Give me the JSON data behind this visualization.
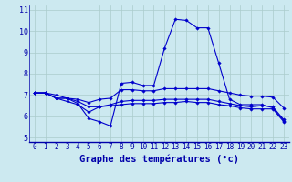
{
  "title": "Graphe des températures (°c)",
  "background_color": "#cce9f0",
  "line_color": "#0000cc",
  "x_hours": [
    0,
    1,
    2,
    3,
    4,
    5,
    6,
    7,
    8,
    9,
    10,
    11,
    12,
    13,
    14,
    15,
    16,
    17,
    18,
    19,
    20,
    21,
    22,
    23
  ],
  "series": {
    "line1": [
      7.1,
      7.1,
      7.0,
      6.85,
      6.6,
      5.9,
      5.75,
      5.55,
      7.55,
      7.6,
      7.45,
      7.45,
      9.2,
      10.55,
      10.5,
      10.15,
      10.15,
      8.5,
      6.8,
      6.55,
      6.55,
      6.55,
      6.4,
      5.8
    ],
    "line2": [
      7.1,
      7.1,
      6.85,
      6.7,
      6.55,
      6.2,
      6.45,
      6.5,
      6.55,
      6.6,
      6.6,
      6.6,
      6.65,
      6.65,
      6.7,
      6.65,
      6.65,
      6.55,
      6.5,
      6.4,
      6.35,
      6.35,
      6.35,
      5.75
    ],
    "line3": [
      7.1,
      7.1,
      6.85,
      6.85,
      6.7,
      6.45,
      6.45,
      6.55,
      6.7,
      6.75,
      6.75,
      6.75,
      6.8,
      6.8,
      6.8,
      6.8,
      6.8,
      6.7,
      6.6,
      6.5,
      6.45,
      6.5,
      6.45,
      5.85
    ],
    "line4": [
      7.1,
      7.1,
      6.85,
      6.85,
      6.8,
      6.65,
      6.8,
      6.85,
      7.25,
      7.25,
      7.2,
      7.2,
      7.3,
      7.3,
      7.3,
      7.3,
      7.3,
      7.2,
      7.1,
      7.0,
      6.95,
      6.95,
      6.9,
      6.4
    ]
  },
  "ylim": [
    4.8,
    11.2
  ],
  "yticks": [
    5,
    6,
    7,
    8,
    9,
    10,
    11
  ],
  "grid_color": "#aacccc",
  "grid_color_minor": "#bbdddd",
  "axis_color": "#0000aa",
  "tick_label_fontsize": 5.5,
  "ylabel_fontsize": 6.0,
  "xlabel_fontsize": 7.5
}
